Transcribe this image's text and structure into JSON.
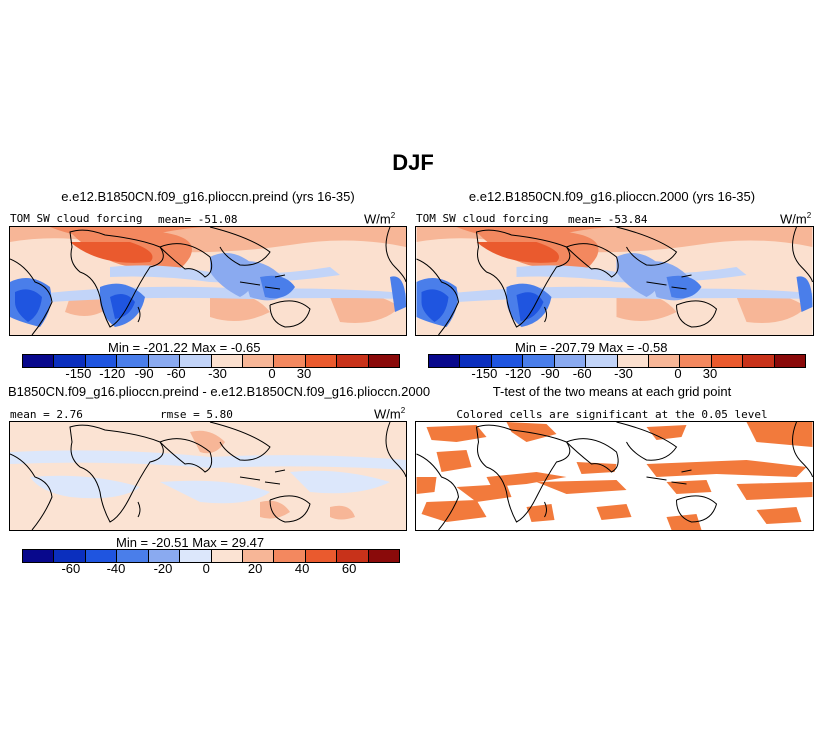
{
  "figure": {
    "title": "DJF"
  },
  "panels": [
    {
      "id": "preind",
      "title": "e.e12.B1850CN.f09_g16.plioccn.preind (yrs 16-35)",
      "field_label": "TOM SW cloud forcing",
      "mean_label": "mean= -51.08",
      "units_base": "W/m",
      "units_exp": "2",
      "minmax": "Min = -201.22  Max =  -0.65"
    },
    {
      "id": "y2000",
      "title": "e.e12.B1850CN.f09_g16.plioccn.2000 (yrs 16-35)",
      "field_label": "TOM SW cloud forcing",
      "mean_label": "mean= -53.84",
      "units_base": "W/m",
      "units_exp": "2",
      "minmax": "Min = -207.79  Max =  -0.58"
    },
    {
      "id": "diff",
      "title": "B1850CN.f09_g16.plioccn.preind - e.e12.B1850CN.f09_g16.plioccn.2000",
      "mean_label": "mean =  2.76",
      "rmse_label": "rmse =  5.80",
      "units_base": "W/m",
      "units_exp": "2",
      "minmax": "Min = -20.51  Max =  29.47"
    },
    {
      "id": "ttest",
      "title": "T-test of the two means at each grid point",
      "subtitle": "Colored cells are significant at the 0.05 level"
    }
  ],
  "colorbars": [
    {
      "colors": [
        "#08088c",
        "#0b2fbe",
        "#1f55e0",
        "#4a7eea",
        "#8aaaf0",
        "#c2d4f8",
        "#fbe0cf",
        "#f7b697",
        "#f3885f",
        "#ea5a2e",
        "#c8321a",
        "#8a0a0a"
      ],
      "ticks": [
        "-150",
        "-120",
        "-90",
        "-60",
        "-30",
        "0",
        "30"
      ]
    },
    {
      "colors": [
        "#08088c",
        "#0b2fbe",
        "#1f55e0",
        "#4a7eea",
        "#8aaaf0",
        "#c2d4f8",
        "#fbe0cf",
        "#f7b697",
        "#f3885f",
        "#ea5a2e",
        "#c8321a",
        "#8a0a0a"
      ],
      "ticks": [
        "-150",
        "-120",
        "-90",
        "-60",
        "-30",
        "0",
        "30"
      ]
    },
    {
      "colors": [
        "#08088c",
        "#0b2fbe",
        "#1f55e0",
        "#4a7eea",
        "#8aaaf0",
        "#dce7fb",
        "#fbe3d3",
        "#f7b697",
        "#f3885f",
        "#ea5a2e",
        "#c8321a",
        "#8a0a0a"
      ],
      "ticks": [
        "-60",
        "-40",
        "-20",
        "0",
        "20",
        "40",
        "60"
      ]
    }
  ],
  "colors": {
    "significant": "#f27a3c",
    "land_outline": "#000000"
  }
}
